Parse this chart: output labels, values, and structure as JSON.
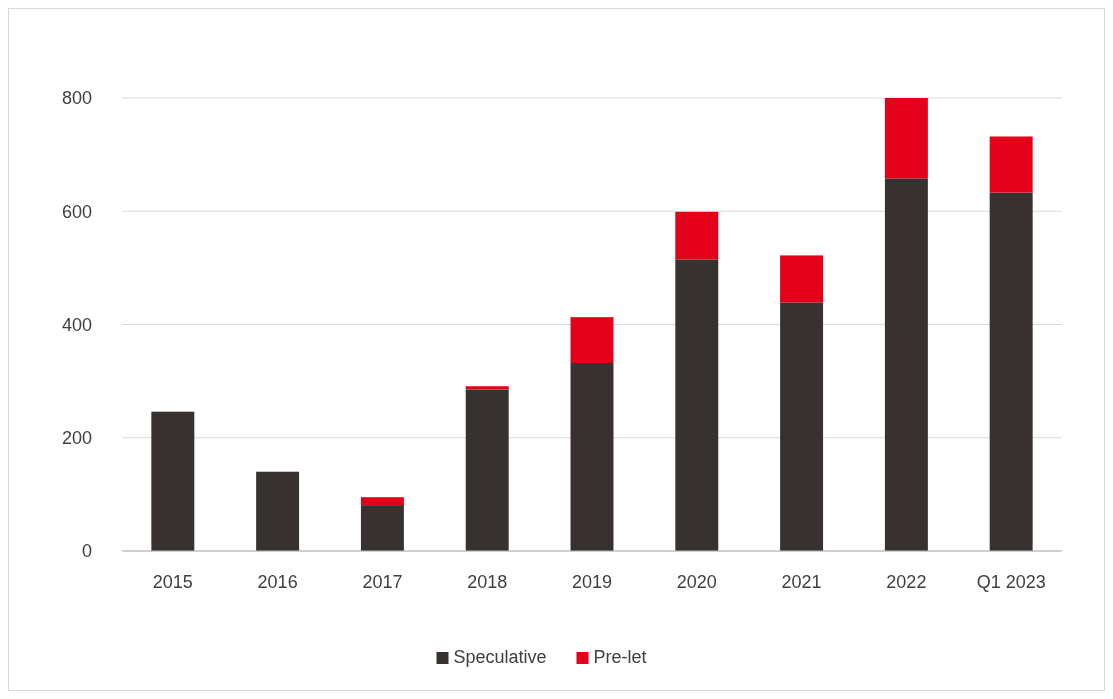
{
  "chart_data": {
    "type": "bar",
    "stacked": true,
    "categories": [
      "2015",
      "2016",
      "2017",
      "2018",
      "2019",
      "2020",
      "2021",
      "2022",
      "Q1 2023"
    ],
    "series": [
      {
        "name": "Speculative",
        "color": "#37322f",
        "values": [
          246,
          140,
          81,
          285,
          332,
          515,
          439,
          658,
          633
        ]
      },
      {
        "name": "Pre-let",
        "color": "#e2001a",
        "values": [
          0,
          0,
          14,
          6,
          81,
          84,
          83,
          142,
          99
        ]
      }
    ],
    "ylim": [
      0,
      800
    ],
    "yticks": [
      0,
      200,
      400,
      600,
      800
    ],
    "grid": "y",
    "legend": "bottom"
  }
}
